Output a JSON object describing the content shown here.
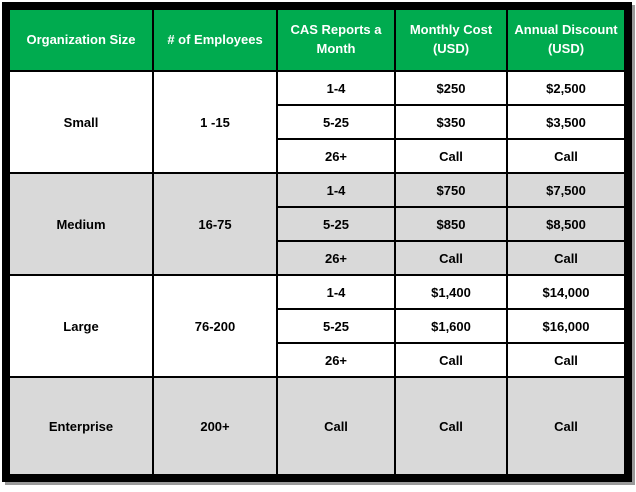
{
  "colors": {
    "header_bg": "#00AB4F",
    "header_text": "#FFFFFF",
    "row_white": "#FFFFFF",
    "row_shaded": "#D9D9D9",
    "border": "#000000",
    "shadow": "#9A9A9A"
  },
  "table": {
    "headers": [
      "Organization Size",
      "# of Employees",
      "CAS Reports a Month",
      "Monthly Cost (USD)",
      "Annual Discount (USD)"
    ],
    "sections": [
      {
        "size": "Small",
        "employees": "1 -15",
        "tiers": [
          {
            "reports": "1-4",
            "monthly": "$250",
            "discount": "$2,500"
          },
          {
            "reports": "5-25",
            "monthly": "$350",
            "discount": "$3,500"
          },
          {
            "reports": "26+",
            "monthly": "Call",
            "discount": "Call"
          }
        ]
      },
      {
        "size": "Medium",
        "employees": "16-75",
        "tiers": [
          {
            "reports": "1-4",
            "monthly": "$750",
            "discount": "$7,500"
          },
          {
            "reports": "5-25",
            "monthly": "$850",
            "discount": "$8,500"
          },
          {
            "reports": "26+",
            "monthly": "Call",
            "discount": "Call"
          }
        ]
      },
      {
        "size": "Large",
        "employees": "76-200",
        "tiers": [
          {
            "reports": "1-4",
            "monthly": "$1,400",
            "discount": "$14,000"
          },
          {
            "reports": "5-25",
            "monthly": "$1,600",
            "discount": "$16,000"
          },
          {
            "reports": "26+",
            "monthly": "Call",
            "discount": "Call"
          }
        ]
      },
      {
        "size": "Enterprise",
        "employees": "200+",
        "tiers": [
          {
            "reports": "Call",
            "monthly": "Call",
            "discount": "Call"
          }
        ]
      }
    ]
  }
}
